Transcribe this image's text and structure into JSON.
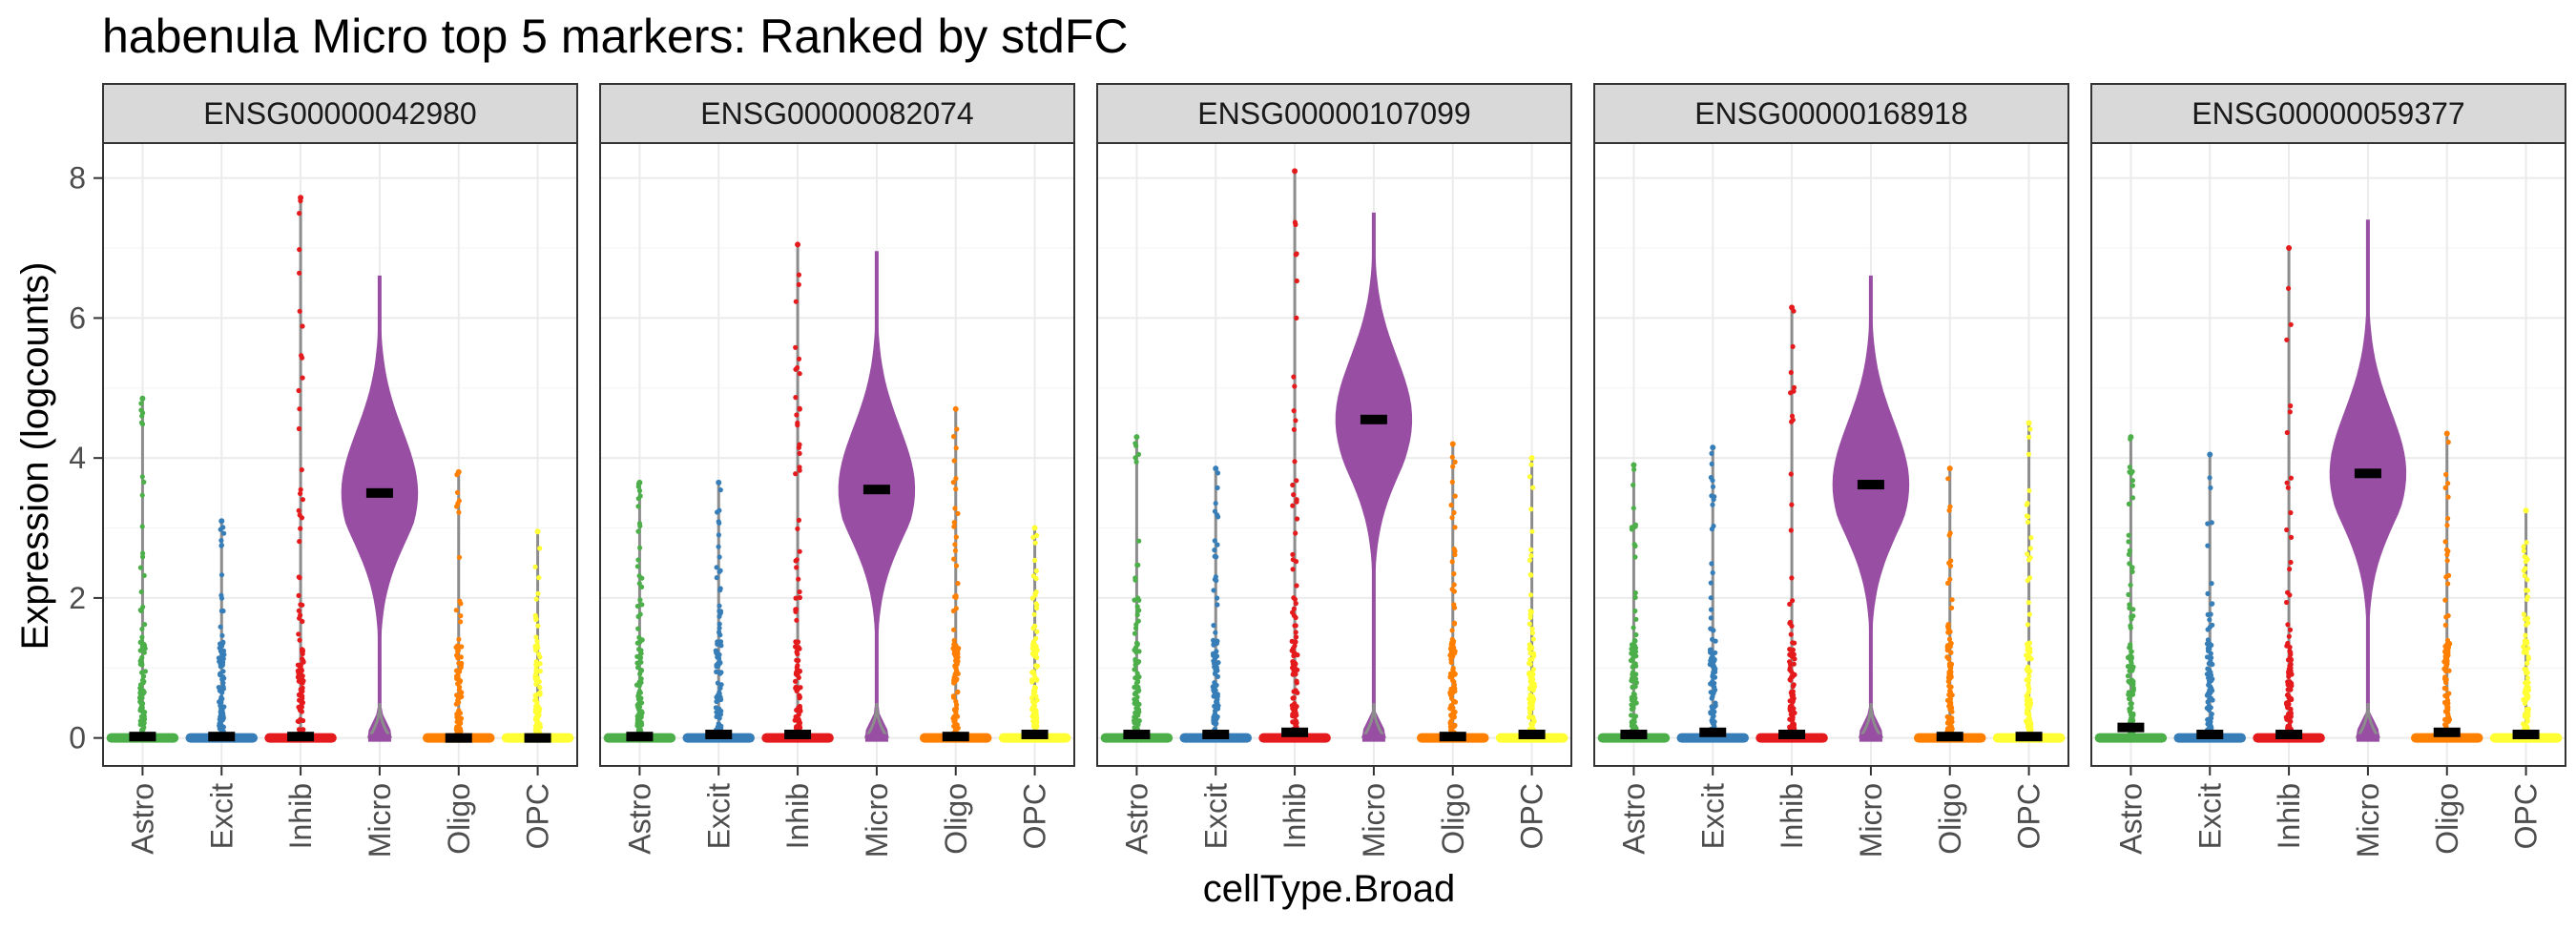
{
  "chart_data": {
    "type": "violin",
    "title": "habenula Micro top 5 markers: Ranked by stdFC",
    "xlabel": "cellType.Broad",
    "ylabel": "Expression (logcounts)",
    "ylim": [
      -0.4,
      8.5
    ],
    "yticks": [
      0,
      2,
      4,
      6,
      8
    ],
    "grid": true,
    "legend": "none",
    "categories": [
      "Astro",
      "Excit",
      "Inhib",
      "Micro",
      "Oligo",
      "OPC"
    ],
    "category_colors": {
      "Astro": "#4DAF4A",
      "Excit": "#377EB8",
      "Inhib": "#E41A1C",
      "Micro": "#984EA3",
      "Oligo": "#FF7F00",
      "OPC": "#FFFF33"
    },
    "panels": [
      {
        "gene": "ENSG00000042980",
        "median": [
          0.02,
          0.02,
          0.02,
          3.5,
          0.0,
          0.0
        ],
        "max": [
          4.85,
          3.1,
          7.72,
          6.6,
          3.8,
          2.95
        ]
      },
      {
        "gene": "ENSG00000082074",
        "median": [
          0.02,
          0.05,
          0.05,
          3.55,
          0.02,
          0.05
        ],
        "max": [
          3.65,
          3.65,
          7.05,
          6.95,
          4.7,
          3.0
        ]
      },
      {
        "gene": "ENSG00000107099",
        "median": [
          0.05,
          0.05,
          0.08,
          4.55,
          0.02,
          0.05
        ],
        "max": [
          4.3,
          3.85,
          8.1,
          7.5,
          4.2,
          4.0
        ]
      },
      {
        "gene": "ENSG00000168918",
        "median": [
          0.05,
          0.08,
          0.05,
          3.62,
          0.02,
          0.02
        ],
        "max": [
          3.9,
          4.15,
          6.15,
          6.6,
          3.85,
          4.5
        ]
      },
      {
        "gene": "ENSG00000059377",
        "median": [
          0.15,
          0.05,
          0.05,
          3.78,
          0.08,
          0.05
        ],
        "max": [
          4.3,
          4.05,
          7.0,
          7.4,
          4.35,
          3.25
        ]
      }
    ]
  }
}
